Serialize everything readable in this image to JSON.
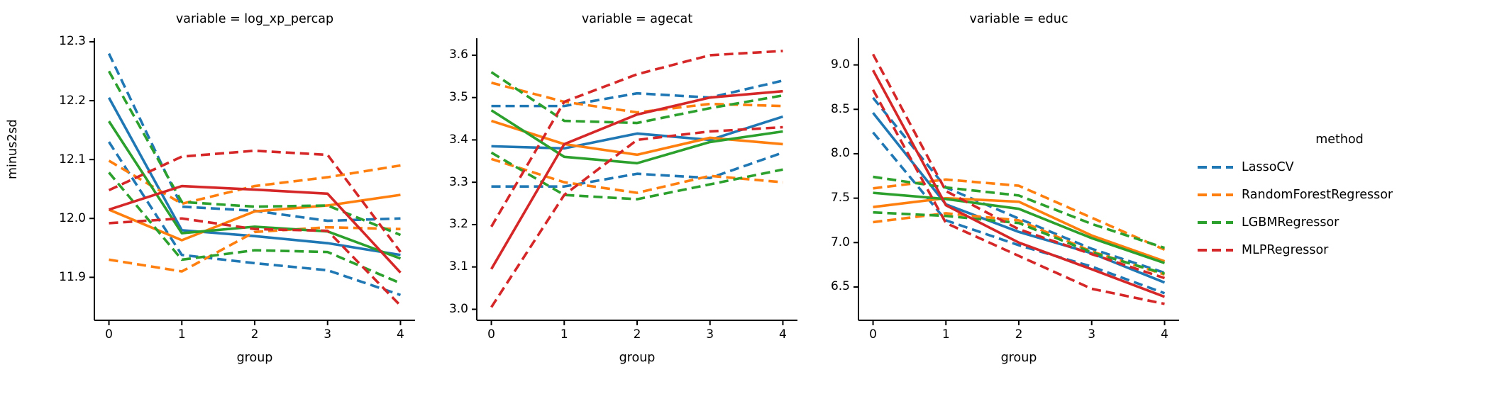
{
  "figure": {
    "ylabel": "minus2sd",
    "xlabel": "group",
    "background": "#ffffff",
    "text_color": "#000000",
    "spine_color": "#000000"
  },
  "legend": {
    "title": "method",
    "entries": [
      {
        "label": "LassoCV",
        "color": "#1f77b4",
        "style": "dashed"
      },
      {
        "label": "RandomForestRegressor",
        "color": "#ff7f0e",
        "style": "dashed"
      },
      {
        "label": "LGBMRegressor",
        "color": "#2ca02c",
        "style": "dashed"
      },
      {
        "label": "MLPRegressor",
        "color": "#d62728",
        "style": "dashed"
      }
    ]
  },
  "chart_data": [
    {
      "type": "line",
      "title": "variable = log_xp_percap",
      "xlabel": "group",
      "ylabel": "minus2sd",
      "x": [
        0,
        1,
        2,
        3,
        4
      ],
      "xlim": [
        -0.2,
        4.2
      ],
      "ylim": [
        11.827,
        12.306
      ],
      "xtick_labels": [
        "0",
        "1",
        "2",
        "3",
        "4"
      ],
      "ytick_values": [
        11.9,
        12.0,
        12.1,
        12.2,
        12.3
      ],
      "ytick_labels": [
        "11.9",
        "12.0",
        "12.1",
        "12.2",
        "12.3"
      ],
      "grid": false,
      "series": [
        {
          "method": "LassoCV",
          "band": "mid",
          "style": "solid",
          "color": "#1f77b4",
          "values": [
            12.205,
            11.98,
            11.97,
            11.958,
            11.938
          ]
        },
        {
          "method": "LassoCV",
          "band": "upper",
          "style": "dashed",
          "color": "#1f77b4",
          "values": [
            12.28,
            12.02,
            12.013,
            11.996,
            12.0
          ]
        },
        {
          "method": "LassoCV",
          "band": "lower",
          "style": "dashed",
          "color": "#1f77b4",
          "values": [
            12.13,
            11.938,
            11.924,
            11.912,
            11.87
          ]
        },
        {
          "method": "RandomForestRegressor",
          "band": "mid",
          "style": "solid",
          "color": "#ff7f0e",
          "values": [
            12.015,
            11.963,
            12.012,
            12.022,
            12.04
          ]
        },
        {
          "method": "RandomForestRegressor",
          "band": "upper",
          "style": "dashed",
          "color": "#ff7f0e",
          "values": [
            12.098,
            12.025,
            12.055,
            12.07,
            12.09
          ]
        },
        {
          "method": "RandomForestRegressor",
          "band": "lower",
          "style": "dashed",
          "color": "#ff7f0e",
          "values": [
            11.93,
            11.91,
            11.977,
            11.985,
            11.982
          ]
        },
        {
          "method": "LGBMRegressor",
          "band": "mid",
          "style": "solid",
          "color": "#2ca02c",
          "values": [
            12.165,
            11.975,
            11.986,
            11.978,
            11.932
          ]
        },
        {
          "method": "LGBMRegressor",
          "band": "upper",
          "style": "dashed",
          "color": "#2ca02c",
          "values": [
            12.25,
            12.028,
            12.02,
            12.022,
            11.972
          ]
        },
        {
          "method": "LGBMRegressor",
          "band": "lower",
          "style": "dashed",
          "color": "#2ca02c",
          "values": [
            12.078,
            11.93,
            11.946,
            11.943,
            11.89
          ]
        },
        {
          "method": "MLPRegressor",
          "band": "mid",
          "style": "solid",
          "color": "#d62728",
          "values": [
            12.015,
            12.055,
            12.049,
            12.042,
            11.908
          ]
        },
        {
          "method": "MLPRegressor",
          "band": "upper",
          "style": "dashed",
          "color": "#d62728",
          "values": [
            12.048,
            12.105,
            12.115,
            12.108,
            11.943
          ]
        },
        {
          "method": "MLPRegressor",
          "band": "lower",
          "style": "dashed",
          "color": "#d62728",
          "values": [
            11.992,
            12.0,
            11.982,
            11.979,
            11.852
          ]
        }
      ]
    },
    {
      "type": "line",
      "title": "variable = agecat",
      "xlabel": "group",
      "x": [
        0,
        1,
        2,
        3,
        4
      ],
      "xlim": [
        -0.2,
        4.2
      ],
      "ylim": [
        2.974,
        3.64
      ],
      "xtick_labels": [
        "0",
        "1",
        "2",
        "3",
        "4"
      ],
      "ytick_values": [
        3.0,
        3.1,
        3.2,
        3.3,
        3.4,
        3.5,
        3.6
      ],
      "ytick_labels": [
        "3.0",
        "3.1",
        "3.2",
        "3.3",
        "3.4",
        "3.5",
        "3.6"
      ],
      "grid": false,
      "series": [
        {
          "method": "LassoCV",
          "band": "mid",
          "style": "solid",
          "color": "#1f77b4",
          "values": [
            3.385,
            3.38,
            3.415,
            3.4,
            3.455
          ]
        },
        {
          "method": "LassoCV",
          "band": "upper",
          "style": "dashed",
          "color": "#1f77b4",
          "values": [
            3.48,
            3.48,
            3.51,
            3.5,
            3.54
          ]
        },
        {
          "method": "LassoCV",
          "band": "lower",
          "style": "dashed",
          "color": "#1f77b4",
          "values": [
            3.29,
            3.29,
            3.32,
            3.31,
            3.37
          ]
        },
        {
          "method": "RandomForestRegressor",
          "band": "mid",
          "style": "solid",
          "color": "#ff7f0e",
          "values": [
            3.445,
            3.39,
            3.365,
            3.405,
            3.39
          ]
        },
        {
          "method": "RandomForestRegressor",
          "band": "upper",
          "style": "dashed",
          "color": "#ff7f0e",
          "values": [
            3.535,
            3.49,
            3.465,
            3.485,
            3.48
          ]
        },
        {
          "method": "RandomForestRegressor",
          "band": "lower",
          "style": "dashed",
          "color": "#ff7f0e",
          "values": [
            3.355,
            3.3,
            3.275,
            3.315,
            3.3
          ]
        },
        {
          "method": "LGBMRegressor",
          "band": "mid",
          "style": "solid",
          "color": "#2ca02c",
          "values": [
            3.47,
            3.36,
            3.345,
            3.395,
            3.42
          ]
        },
        {
          "method": "LGBMRegressor",
          "band": "upper",
          "style": "dashed",
          "color": "#2ca02c",
          "values": [
            3.56,
            3.445,
            3.44,
            3.475,
            3.505
          ]
        },
        {
          "method": "LGBMRegressor",
          "band": "lower",
          "style": "dashed",
          "color": "#2ca02c",
          "values": [
            3.37,
            3.27,
            3.26,
            3.295,
            3.33
          ]
        },
        {
          "method": "MLPRegressor",
          "band": "mid",
          "style": "solid",
          "color": "#d62728",
          "values": [
            3.095,
            3.39,
            3.46,
            3.5,
            3.515
          ]
        },
        {
          "method": "MLPRegressor",
          "band": "upper",
          "style": "dashed",
          "color": "#d62728",
          "values": [
            3.195,
            3.49,
            3.555,
            3.6,
            3.61
          ]
        },
        {
          "method": "MLPRegressor",
          "band": "lower",
          "style": "dashed",
          "color": "#d62728",
          "values": [
            3.005,
            3.27,
            3.4,
            3.42,
            3.43
          ]
        }
      ]
    },
    {
      "type": "line",
      "title": "variable = educ",
      "xlabel": "group",
      "x": [
        0,
        1,
        2,
        3,
        4
      ],
      "xlim": [
        -0.2,
        4.2
      ],
      "ylim": [
        6.125,
        9.3
      ],
      "xtick_labels": [
        "0",
        "1",
        "2",
        "3",
        "4"
      ],
      "ytick_values": [
        6.5,
        7.0,
        7.5,
        8.0,
        8.5,
        9.0
      ],
      "ytick_labels": [
        "6.5",
        "7.0",
        "7.5",
        "8.0",
        "8.5",
        "9.0"
      ],
      "grid": false,
      "series": [
        {
          "method": "LassoCV",
          "band": "mid",
          "style": "solid",
          "color": "#1f77b4",
          "values": [
            8.46,
            7.43,
            7.12,
            6.88,
            6.55
          ]
        },
        {
          "method": "LassoCV",
          "band": "upper",
          "style": "dashed",
          "color": "#1f77b4",
          "values": [
            8.63,
            7.62,
            7.27,
            6.93,
            6.66
          ]
        },
        {
          "method": "LassoCV",
          "band": "lower",
          "style": "dashed",
          "color": "#1f77b4",
          "values": [
            8.24,
            7.25,
            6.97,
            6.73,
            6.43
          ]
        },
        {
          "method": "RandomForestRegressor",
          "band": "mid",
          "style": "solid",
          "color": "#ff7f0e",
          "values": [
            7.4,
            7.5,
            7.46,
            7.08,
            6.79
          ]
        },
        {
          "method": "RandomForestRegressor",
          "band": "upper",
          "style": "dashed",
          "color": "#ff7f0e",
          "values": [
            7.61,
            7.71,
            7.64,
            7.28,
            6.92
          ]
        },
        {
          "method": "RandomForestRegressor",
          "band": "lower",
          "style": "dashed",
          "color": "#ff7f0e",
          "values": [
            7.23,
            7.33,
            7.25,
            6.9,
            6.64
          ]
        },
        {
          "method": "LGBMRegressor",
          "band": "mid",
          "style": "solid",
          "color": "#2ca02c",
          "values": [
            7.56,
            7.49,
            7.38,
            7.05,
            6.77
          ]
        },
        {
          "method": "LGBMRegressor",
          "band": "upper",
          "style": "dashed",
          "color": "#2ca02c",
          "values": [
            7.74,
            7.62,
            7.53,
            7.21,
            6.94
          ]
        },
        {
          "method": "LGBMRegressor",
          "band": "lower",
          "style": "dashed",
          "color": "#2ca02c",
          "values": [
            7.34,
            7.3,
            7.22,
            6.89,
            6.65
          ]
        },
        {
          "method": "MLPRegressor",
          "band": "mid",
          "style": "solid",
          "color": "#d62728",
          "values": [
            8.94,
            7.42,
            7.0,
            6.7,
            6.39
          ]
        },
        {
          "method": "MLPRegressor",
          "band": "upper",
          "style": "dashed",
          "color": "#d62728",
          "values": [
            9.12,
            7.58,
            7.15,
            6.87,
            6.6
          ]
        },
        {
          "method": "MLPRegressor",
          "band": "lower",
          "style": "dashed",
          "color": "#d62728",
          "values": [
            8.72,
            7.22,
            6.85,
            6.48,
            6.31
          ]
        }
      ]
    }
  ]
}
